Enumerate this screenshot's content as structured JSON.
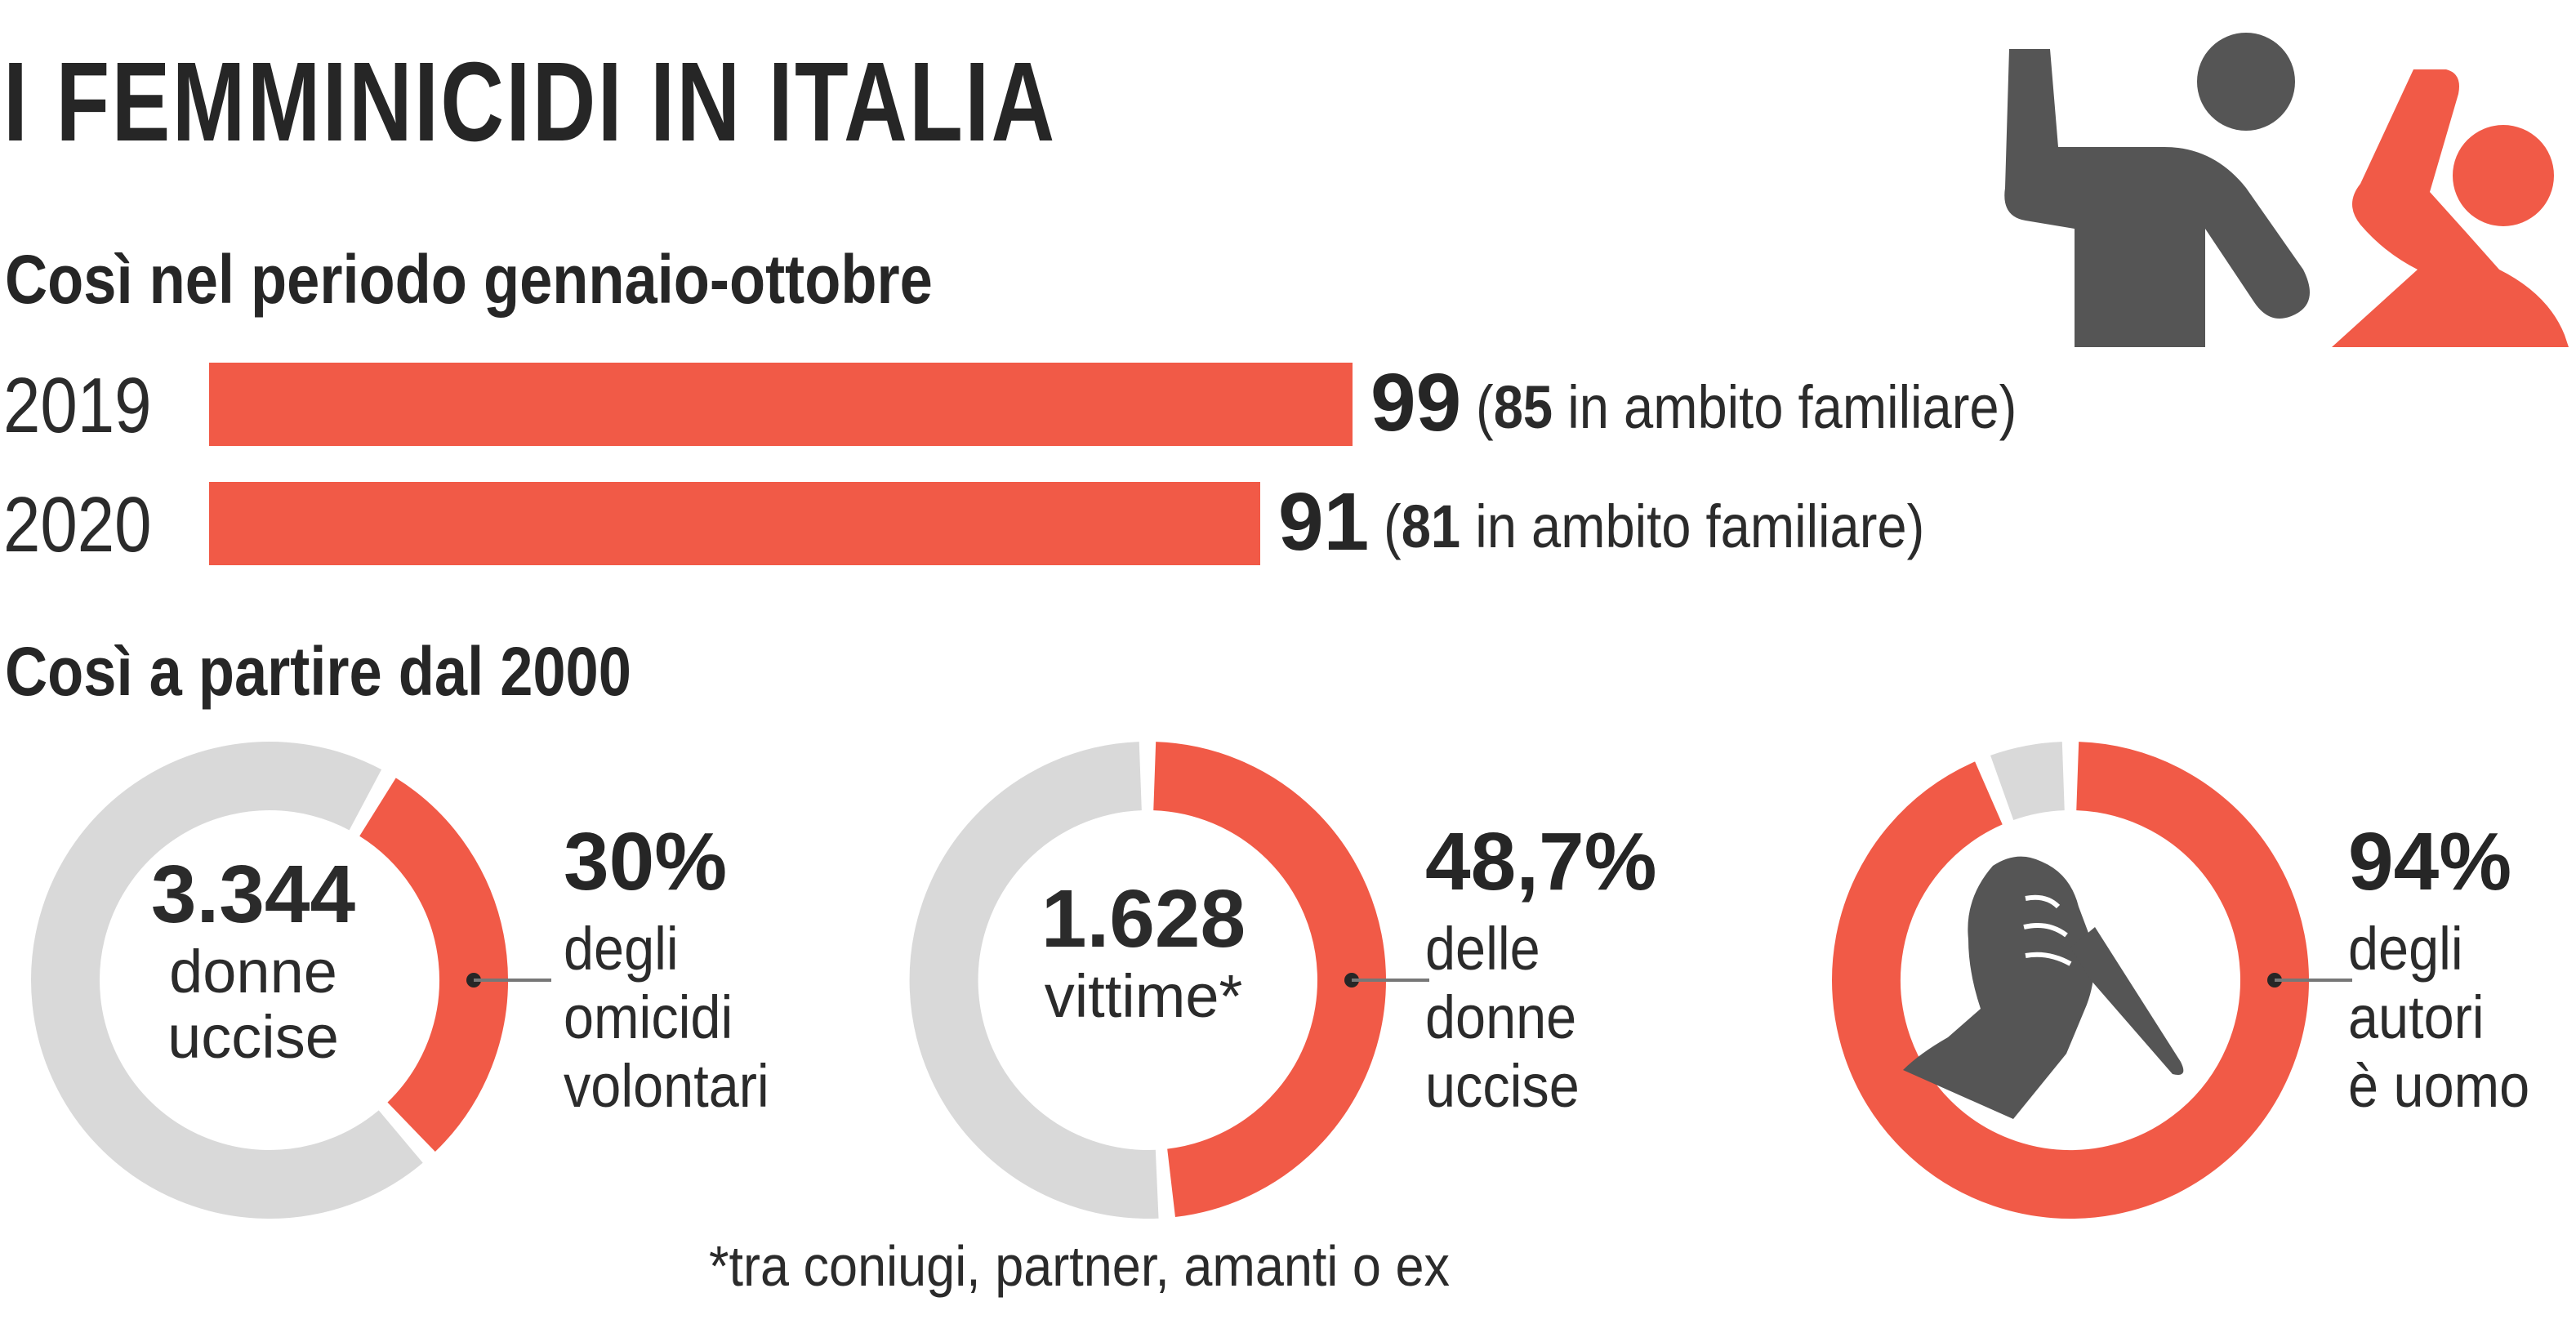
{
  "title": "I FEMMINICIDI IN ITALIA",
  "section1": {
    "subtitle": "Così nel periodo gennaio-ottobre"
  },
  "section2": {
    "subtitle": "Così a partire dal 2000"
  },
  "footnote": "*tra coniugi, partner, amanti o ex",
  "colors": {
    "accent": "#f15a47",
    "neutral": "#d9d9d9",
    "dark": "#555555"
  },
  "icons": {
    "header": "aggressor-and-victim-icon",
    "donut3": "hand-with-knife-icon"
  },
  "chart_data": [
    {
      "type": "bar",
      "orientation": "horizontal",
      "categories": [
        "2019",
        "2020"
      ],
      "values": [
        99,
        91
      ],
      "value_labels": [
        "99",
        "91"
      ],
      "notes": [
        {
          "value": "85",
          "text": "in ambito familiare"
        },
        {
          "value": "81",
          "text": "in ambito familiare"
        }
      ],
      "xlim": [
        0,
        99
      ]
    },
    {
      "type": "pie",
      "style": "donut",
      "center_value": "3.344",
      "center_label": [
        "donne",
        "uccise"
      ],
      "percent": 30,
      "percent_label": "30%",
      "description": [
        "degli",
        "omicidi",
        "volontari"
      ]
    },
    {
      "type": "pie",
      "style": "donut",
      "center_value": "1.628",
      "center_label": [
        "vittime*"
      ],
      "percent": 48.7,
      "percent_label": "48,7%",
      "description": [
        "delle",
        "donne",
        "uccise"
      ]
    },
    {
      "type": "pie",
      "style": "donut",
      "percent": 94,
      "percent_label": "94%",
      "description": [
        "degli",
        "autori",
        "è uomo"
      ]
    }
  ]
}
